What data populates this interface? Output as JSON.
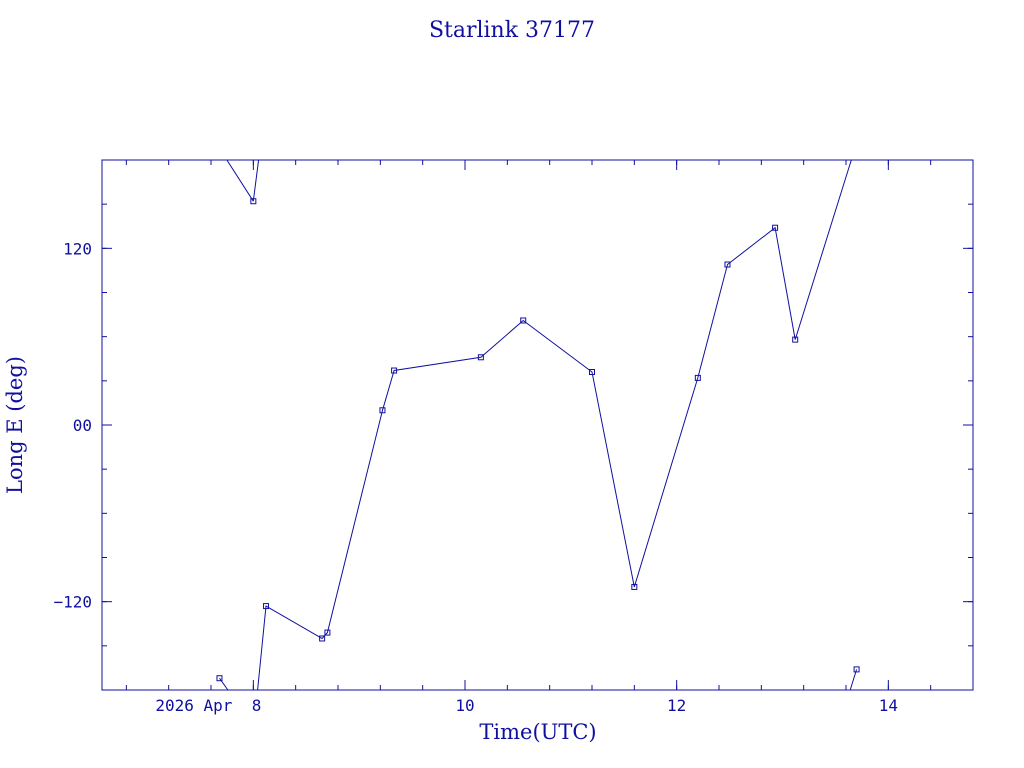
{
  "chart_data": {
    "type": "line",
    "title": "Starlink 37177",
    "xlabel": "Time(UTC)",
    "ylabel": "Long E (deg)",
    "xlim": [
      6.57,
      14.8
    ],
    "ylim": [
      -180,
      180
    ],
    "x_ticks": [
      {
        "value": 8,
        "label": "2026 Apr  8"
      },
      {
        "value": 10,
        "label": "10"
      },
      {
        "value": 12,
        "label": "12"
      },
      {
        "value": 14,
        "label": "14"
      }
    ],
    "y_ticks": [
      {
        "value": -120,
        "label": "−120"
      },
      {
        "value": 0,
        "label": "00"
      },
      {
        "value": 120,
        "label": "120"
      }
    ],
    "segments": [
      [
        [
          7.75,
          180
        ],
        [
          8.0,
          152
        ]
      ],
      [
        [
          8.0,
          152
        ],
        [
          8.05,
          180
        ]
      ],
      [
        [
          7.68,
          -172
        ],
        [
          7.76,
          -180
        ]
      ],
      [
        [
          8.04,
          -180
        ],
        [
          8.12,
          -123
        ],
        [
          8.65,
          -145
        ],
        [
          8.7,
          -141
        ],
        [
          9.22,
          10
        ],
        [
          9.33,
          37
        ],
        [
          10.15,
          46
        ],
        [
          10.55,
          71
        ],
        [
          11.2,
          36
        ],
        [
          11.6,
          -110
        ],
        [
          12.2,
          32
        ],
        [
          12.48,
          109
        ],
        [
          12.93,
          134
        ],
        [
          13.12,
          58
        ],
        [
          13.65,
          180
        ]
      ],
      [
        [
          13.64,
          -180
        ],
        [
          13.7,
          -166
        ]
      ]
    ],
    "markers": [
      [
        7.68,
        -172
      ],
      [
        8.0,
        152
      ],
      [
        8.12,
        -123
      ],
      [
        8.65,
        -145
      ],
      [
        8.7,
        -141
      ],
      [
        9.22,
        10
      ],
      [
        9.33,
        37
      ],
      [
        10.15,
        46
      ],
      [
        10.55,
        71
      ],
      [
        11.2,
        36
      ],
      [
        11.6,
        -110
      ],
      [
        12.2,
        32
      ],
      [
        12.48,
        109
      ],
      [
        12.93,
        134
      ],
      [
        13.12,
        58
      ],
      [
        13.7,
        -166
      ]
    ]
  }
}
